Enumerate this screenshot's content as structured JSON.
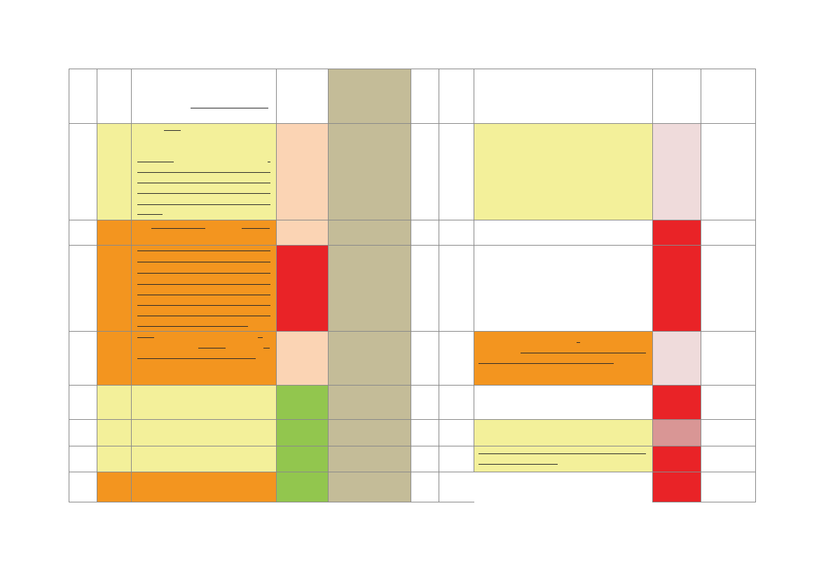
{
  "colors": {
    "yellow": "#f3f09a",
    "orange": "#f3951f",
    "peach": "#fbd4b4",
    "red": "#e92327",
    "green": "#92c64e",
    "tan": "#c4bc98",
    "pale_pink": "#efdbdb",
    "rose": "#d99695",
    "white": "#ffffff",
    "grid": "#8a8a8a",
    "text_line": "#2a2a2a"
  },
  "table": {
    "columns": [
      "",
      "",
      "",
      "",
      "",
      "",
      "",
      "",
      "",
      ""
    ],
    "rows": [
      {
        "label": "header",
        "fills": [
          "white",
          "white",
          "white",
          "white",
          "tan",
          "white",
          "white",
          "white",
          "white",
          "white"
        ],
        "text": [
          "",
          "",
          "",
          "",
          "",
          "",
          "",
          "",
          "",
          ""
        ]
      },
      {
        "label": "row-1",
        "fills": [
          "white",
          "yellow",
          "yellow",
          "peach",
          "tan",
          "white",
          "white",
          "yellow",
          "pale_pink",
          "white"
        ],
        "text": [
          "",
          "",
          "",
          "",
          "",
          "",
          "",
          "",
          "",
          ""
        ]
      },
      {
        "label": "row-2",
        "fills": [
          "white",
          "orange",
          "orange",
          "peach",
          "tan",
          "white",
          "white",
          "white",
          "red",
          "white"
        ],
        "text": [
          "",
          "",
          "",
          "",
          "",
          "",
          "",
          "",
          "",
          ""
        ]
      },
      {
        "label": "row-3",
        "fills": [
          "white",
          "orange",
          "orange",
          "red",
          "tan",
          "white",
          "white",
          "white",
          "red",
          "white"
        ],
        "text": [
          "",
          "",
          "",
          "",
          "",
          "",
          "",
          "",
          "",
          ""
        ]
      },
      {
        "label": "row-4",
        "fills": [
          "white",
          "orange",
          "orange",
          "peach",
          "tan",
          "white",
          "white",
          "orange",
          "pale_pink",
          "white"
        ],
        "text": [
          "",
          "",
          "",
          "",
          "",
          "",
          "",
          "",
          "",
          ""
        ]
      },
      {
        "label": "row-5",
        "fills": [
          "white",
          "yellow",
          "yellow",
          "green",
          "tan",
          "white",
          "white",
          "white",
          "red",
          "white"
        ],
        "text": [
          "",
          "",
          "",
          "",
          "",
          "",
          "",
          "",
          "",
          ""
        ]
      },
      {
        "label": "row-6",
        "fills": [
          "white",
          "yellow",
          "yellow",
          "green",
          "tan",
          "white",
          "white",
          "yellow",
          "rose",
          "white"
        ],
        "text": [
          "",
          "",
          "",
          "",
          "",
          "",
          "",
          "",
          "",
          ""
        ]
      },
      {
        "label": "row-7",
        "fills": [
          "white",
          "yellow",
          "yellow",
          "green",
          "tan",
          "white",
          "white",
          "yellow",
          "red",
          "white"
        ],
        "text": [
          "",
          "",
          "",
          "",
          "",
          "",
          "",
          "",
          "",
          ""
        ]
      },
      {
        "label": "row-8",
        "fills": [
          "white",
          "orange",
          "orange",
          "green",
          "tan",
          "white",
          "white",
          "white",
          "red",
          "white"
        ],
        "text": [
          "",
          "",
          "",
          "",
          "",
          "",
          "",
          "",
          "",
          ""
        ]
      }
    ]
  }
}
